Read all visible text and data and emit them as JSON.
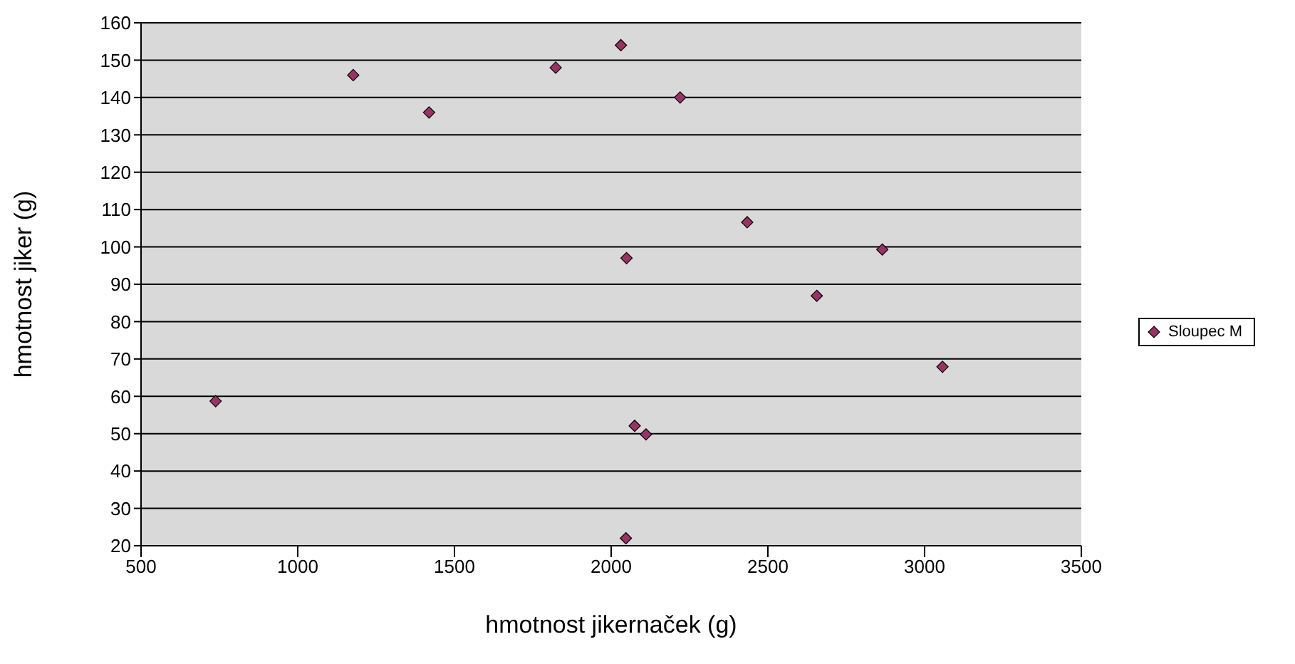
{
  "chart_data": {
    "type": "scatter",
    "xlabel": "hmotnost jikernaček (g)",
    "ylabel": "hmotnost jiker (g)",
    "xlim": [
      500,
      3500
    ],
    "xticks": [
      500,
      1000,
      1500,
      2000,
      2500,
      3000,
      3500
    ],
    "ylim": [
      20,
      160
    ],
    "yticks": [
      20,
      30,
      40,
      50,
      60,
      70,
      80,
      90,
      100,
      110,
      120,
      130,
      140,
      150,
      160
    ],
    "grid": "y",
    "legend": "right",
    "marker": "diamond",
    "series": [
      {
        "name": "Sloupec M",
        "color": "#993366",
        "x": [
          738,
          1177,
          1419,
          1823,
          2031,
          2049,
          2220,
          2434,
          2865,
          2656,
          3057,
          2075,
          2111,
          2047
        ],
        "values": [
          58.7,
          146,
          136,
          148,
          154,
          97,
          140,
          106.6,
          99.3,
          86.9,
          67.9,
          52.1,
          49.8,
          22
        ]
      }
    ]
  }
}
